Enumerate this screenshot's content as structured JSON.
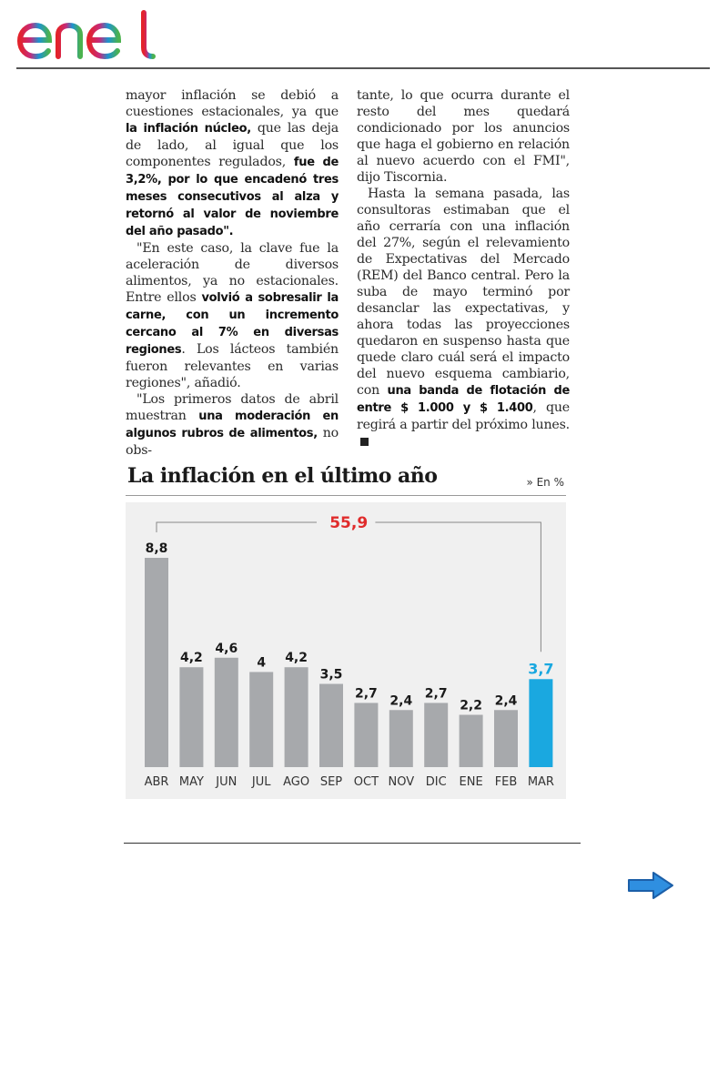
{
  "brand": {
    "logo_text": "enel",
    "logo_colors": [
      "#e3232c",
      "#b32b8b",
      "#1d93d0",
      "#4cb24e"
    ]
  },
  "article": {
    "col1": [
      {
        "runs": [
          {
            "t": "mayor inflación se debió a cuestiones estacionales, ya que "
          },
          {
            "t": "la inflación núcleo,",
            "b": true
          },
          {
            "t": " que las deja de lado, al igual que los componentes regulados, "
          },
          {
            "t": "fue de 3,2%, por lo que encadenó tres meses consecutivos al alza y retornó al valor de noviembre del año pasado\".",
            "b": true
          }
        ]
      },
      {
        "runs": [
          {
            "t": "\"En este caso, la clave fue la aceleración de diversos alimentos, ya no estacionales. Entre ellos "
          },
          {
            "t": "volvió a sobresalir la carne, con un incremento cercano al 7% en diversas regiones",
            "b": true
          },
          {
            "t": ". Los lácteos también fueron relevantes en varias regiones\", añadió."
          }
        ]
      },
      {
        "runs": [
          {
            "t": "\"Los primeros datos de abril muestran "
          },
          {
            "t": "una moderación en algunos rubros de alimentos,",
            "b": true
          },
          {
            "t": " no obs-"
          }
        ]
      }
    ],
    "col2": [
      {
        "runs": [
          {
            "t": "tante, lo que ocurra durante el resto del mes quedará condicionado por los anuncios que haga el gobierno en relación al nuevo acuerdo con el FMI\", dijo Tiscornia."
          }
        ]
      },
      {
        "runs": [
          {
            "t": "Hasta la semana pasada, las consultoras estimaban que el año cerraría con una inflación del 27%, según el relevamiento de Expectativas del Mercado (REM) del Banco central. Pero la suba de mayo terminó por desanclar las expectativas, y ahora todas las proyecciones quedaron en suspenso hasta que quede claro cuál será el impacto del nuevo esquema cambiario, con "
          },
          {
            "t": "una banda de flotación de entre $ 1.000 y $ 1.400",
            "b": true
          },
          {
            "t": ", que regirá a partir del próximo lunes."
          }
        ],
        "end": true
      }
    ]
  },
  "chart": {
    "title": "La inflación en el último año",
    "unit": "» En %",
    "total_label": "55,9"
  },
  "chart_data": {
    "type": "bar",
    "title": "La inflación en el último año",
    "unit": "En %",
    "categories": [
      "ABR",
      "MAY",
      "JUN",
      "JUL",
      "AGO",
      "SEP",
      "OCT",
      "NOV",
      "DIC",
      "ENE",
      "FEB",
      "MAR"
    ],
    "values": [
      8.8,
      4.2,
      4.6,
      4.0,
      4.2,
      3.5,
      2.7,
      2.4,
      2.7,
      2.2,
      2.4,
      3.7
    ],
    "value_labels": [
      "8,8",
      "4,2",
      "4,6",
      "4",
      "4,2",
      "3,5",
      "2,7",
      "2,4",
      "2,7",
      "2,2",
      "2,4",
      "3,7"
    ],
    "highlight_index": 11,
    "annotation": "55,9",
    "colors": {
      "bar": "#a7a9ac",
      "highlight": "#1aa8e0",
      "annotation": "#e02b2b",
      "label": "#1a1a1a"
    },
    "ylim": [
      0,
      9.5
    ]
  },
  "nav": {
    "next_icon": "right-arrow-icon",
    "arrow_color": "#2f8fe0"
  }
}
